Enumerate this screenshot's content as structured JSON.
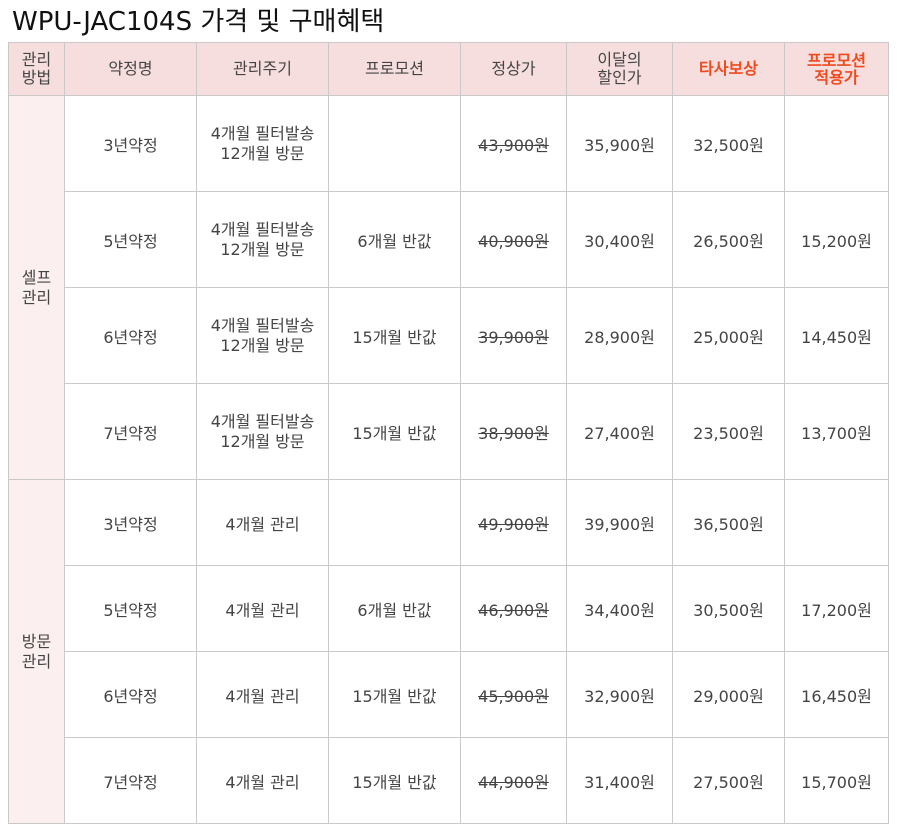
{
  "title": "WPU-JAC104S 가격 및 구매혜택",
  "headers": {
    "method": [
      "관리",
      "방법"
    ],
    "term": "약정명",
    "cycle": "관리주기",
    "promo": "프로모션",
    "regular": "정상가",
    "discount": [
      "이달의",
      "할인가"
    ],
    "competitor": "타사보상",
    "promo_price": [
      "프로모션",
      "적용가"
    ]
  },
  "groups": [
    {
      "name": [
        "셀프",
        "관리"
      ],
      "rows": [
        {
          "term": "3년약정",
          "cycle": [
            "4개월 필터발송",
            "12개월 방문"
          ],
          "promo": "",
          "regular": "43,900원",
          "discount": "35,900원",
          "competitor": "32,500원",
          "promo_price": ""
        },
        {
          "term": "5년약정",
          "cycle": [
            "4개월 필터발송",
            "12개월 방문"
          ],
          "promo": "6개월 반값",
          "regular": "40,900원",
          "discount": "30,400원",
          "competitor": "26,500원",
          "promo_price": "15,200원"
        },
        {
          "term": "6년약정",
          "cycle": [
            "4개월 필터발송",
            "12개월 방문"
          ],
          "promo": "15개월 반값",
          "regular": "39,900원",
          "discount": "28,900원",
          "competitor": "25,000원",
          "promo_price": "14,450원"
        },
        {
          "term": "7년약정",
          "cycle": [
            "4개월 필터발송",
            "12개월 방문"
          ],
          "promo": "15개월 반값",
          "regular": "38,900원",
          "discount": "27,400원",
          "competitor": "23,500원",
          "promo_price": "13,700원"
        }
      ]
    },
    {
      "name": [
        "방문",
        "관리"
      ],
      "rows": [
        {
          "term": "3년약정",
          "cycle": [
            "4개월 관리"
          ],
          "promo": "",
          "regular": "49,900원",
          "discount": "39,900원",
          "competitor": "36,500원",
          "promo_price": ""
        },
        {
          "term": "5년약정",
          "cycle": [
            "4개월 관리"
          ],
          "promo": "6개월 반값",
          "regular": "46,900원",
          "discount": "34,400원",
          "competitor": "30,500원",
          "promo_price": "17,200원"
        },
        {
          "term": "6년약정",
          "cycle": [
            "4개월 관리"
          ],
          "promo": "15개월 반값",
          "regular": "45,900원",
          "discount": "32,900원",
          "competitor": "29,000원",
          "promo_price": "16,450원"
        },
        {
          "term": "7년약정",
          "cycle": [
            "4개월 관리"
          ],
          "promo": "15개월 반값",
          "regular": "44,900원",
          "discount": "31,400원",
          "competitor": "27,500원",
          "promo_price": "15,700원"
        }
      ]
    }
  ]
}
